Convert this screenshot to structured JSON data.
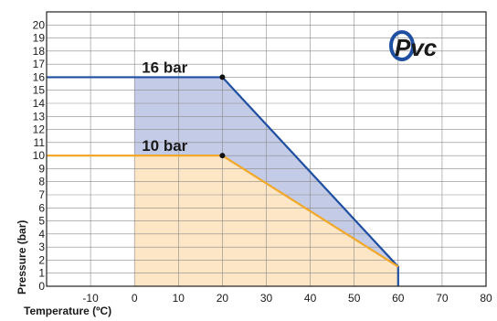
{
  "chart_data": {
    "type": "line",
    "xlabel": "Temperature (ºC)",
    "ylabel": "Pressure (bar)",
    "xlim": [
      -20,
      80
    ],
    "ylim": [
      0,
      21
    ],
    "x_ticks": [
      -10,
      0,
      10,
      20,
      30,
      40,
      50,
      60,
      70,
      80
    ],
    "y_ticks": [
      0,
      1,
      2,
      3,
      4,
      5,
      6,
      7,
      8,
      9,
      10,
      11,
      12,
      13,
      14,
      15,
      16,
      17,
      18,
      19,
      20
    ],
    "grid": true,
    "series": [
      {
        "name": "16 bar",
        "color": "#1f4fa0",
        "fill": "#c4cbe6",
        "points": [
          [
            -20,
            16
          ],
          [
            20,
            16
          ],
          [
            60,
            1.5
          ],
          [
            60,
            0
          ]
        ],
        "marker": [
          20,
          16
        ],
        "fill_from_x": 0
      },
      {
        "name": "10 bar",
        "color": "#f2a829",
        "fill": "#fde6c5",
        "points": [
          [
            -20,
            10
          ],
          [
            20,
            10
          ],
          [
            60,
            1.5
          ]
        ],
        "marker": [
          20,
          10
        ],
        "fill_from_x": 0
      }
    ]
  },
  "logo": {
    "text": "Pvc",
    "color": "#1f4fa0"
  }
}
